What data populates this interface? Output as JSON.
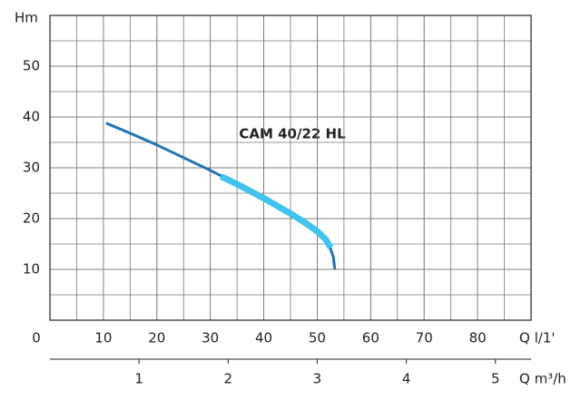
{
  "chart_data": {
    "type": "line",
    "annotation": "CAM 40/22 HL",
    "y_label": "Hm",
    "x_label": "Q l/1'",
    "x2_label": "Q m³/h",
    "xlim": [
      0,
      90
    ],
    "xticks": [
      0,
      10,
      20,
      30,
      40,
      50,
      60,
      70,
      80
    ],
    "ylim": [
      0,
      60
    ],
    "yticks": [
      10,
      20,
      30,
      40,
      50
    ],
    "x2lim": [
      0,
      5.4
    ],
    "x2ticks": [
      1,
      2,
      3,
      4,
      5
    ],
    "grid": true,
    "series": [
      {
        "color": "#1f74b5",
        "width": 3,
        "x": [
          10.5,
          15,
          20,
          25,
          30,
          35,
          40,
          45,
          48,
          50,
          51.5,
          52.5,
          53,
          53.3
        ],
        "values": [
          38.8,
          36.8,
          34.5,
          32.0,
          29.5,
          26.8,
          24.0,
          21.0,
          19.0,
          17.5,
          16.0,
          14.0,
          12.5,
          10.0
        ]
      },
      {
        "color": "#3ec4ee",
        "width": 7,
        "x": [
          32,
          35,
          40,
          45,
          48,
          50,
          51.5,
          52.5
        ],
        "values": [
          28.3,
          26.8,
          24.0,
          21.0,
          19.0,
          17.5,
          16.0,
          14.3
        ]
      }
    ]
  }
}
